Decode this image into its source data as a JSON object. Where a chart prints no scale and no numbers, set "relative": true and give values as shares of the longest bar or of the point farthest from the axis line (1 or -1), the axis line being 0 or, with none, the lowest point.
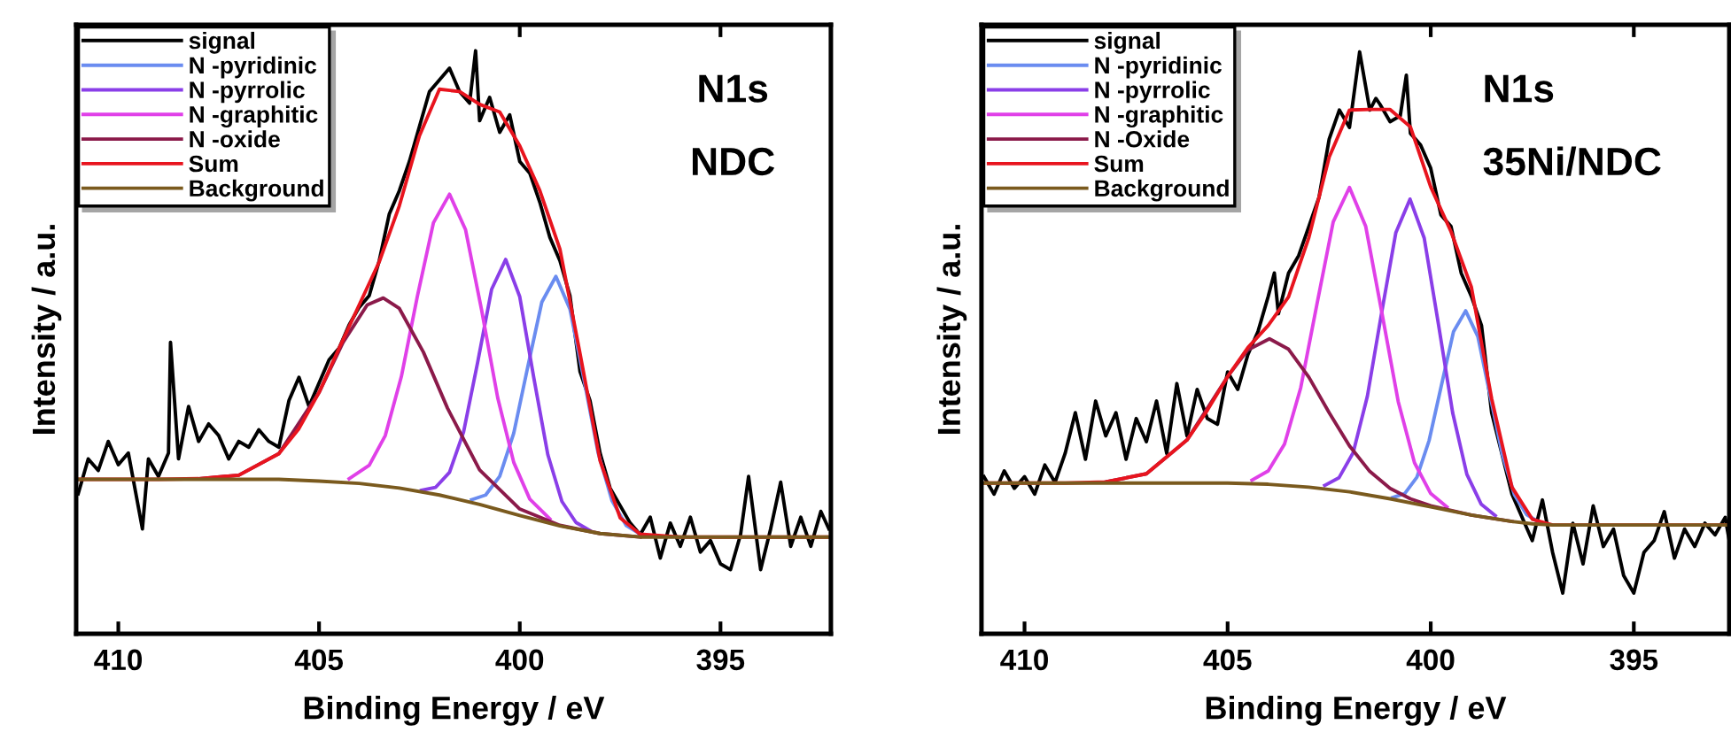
{
  "chart_data": [
    {
      "type": "line",
      "relative": true,
      "xlabel": "Binding Energy / eV",
      "ylabel": "Intensity / a.u.",
      "xlim": [
        411.05,
        392.25
      ],
      "xticks": [
        410,
        405,
        400,
        395
      ],
      "legend": "top left",
      "grid": false,
      "annotations": [
        "N1s",
        "NDC"
      ],
      "series": [
        {
          "name": "signal",
          "color": "#000000",
          "x": [
            411.0,
            410.75,
            410.5,
            410.25,
            410.0,
            409.75,
            409.4,
            409.25,
            409.0,
            408.75,
            408.7,
            408.5,
            408.25,
            408.0,
            407.75,
            407.5,
            407.25,
            407.0,
            406.75,
            406.5,
            406.25,
            406.0,
            405.75,
            405.5,
            405.25,
            405.0,
            404.75,
            404.5,
            404.25,
            404.0,
            403.75,
            403.5,
            403.25,
            403.0,
            402.75,
            402.5,
            402.25,
            402.0,
            401.75,
            401.5,
            401.25,
            401.1,
            401.0,
            400.75,
            400.5,
            400.25,
            400.0,
            399.75,
            399.5,
            399.25,
            399.0,
            398.75,
            398.5,
            398.25,
            398.0,
            397.75,
            397.5,
            397.25,
            397.0,
            396.75,
            396.5,
            396.25,
            396.0,
            395.75,
            395.5,
            395.25,
            395.0,
            394.75,
            394.5,
            394.3,
            394.0,
            393.75,
            393.5,
            393.25,
            393.0,
            392.75,
            392.5,
            392.3
          ],
          "values": [
            0.24,
            0.3,
            0.28,
            0.33,
            0.29,
            0.31,
            0.18,
            0.3,
            0.27,
            0.31,
            0.5,
            0.3,
            0.39,
            0.33,
            0.36,
            0.34,
            0.3,
            0.33,
            0.32,
            0.35,
            0.33,
            0.32,
            0.4,
            0.44,
            0.39,
            0.43,
            0.47,
            0.49,
            0.53,
            0.56,
            0.58,
            0.64,
            0.72,
            0.76,
            0.81,
            0.87,
            0.93,
            0.95,
            0.97,
            0.93,
            0.91,
            1.0,
            0.88,
            0.92,
            0.86,
            0.89,
            0.81,
            0.79,
            0.74,
            0.68,
            0.64,
            0.58,
            0.45,
            0.4,
            0.31,
            0.25,
            0.22,
            0.19,
            0.17,
            0.2,
            0.13,
            0.19,
            0.15,
            0.2,
            0.14,
            0.16,
            0.12,
            0.11,
            0.17,
            0.27,
            0.11,
            0.18,
            0.26,
            0.15,
            0.2,
            0.15,
            0.21,
            0.18
          ]
        },
        {
          "name": "N -pyridinic",
          "color": "#6a8cf0",
          "x": [
            401.2,
            400.85,
            400.5,
            400.15,
            399.8,
            399.45,
            399.1,
            398.75,
            398.4,
            398.05,
            397.7,
            397.35,
            397.0
          ],
          "values": [
            0.23,
            0.238,
            0.27,
            0.344,
            0.458,
            0.569,
            0.613,
            0.557,
            0.436,
            0.311,
            0.228,
            0.186,
            0.171
          ]
        },
        {
          "name": "N -pyrrolic",
          "color": "#8a3ee8",
          "x": [
            402.45,
            402.1,
            401.75,
            401.4,
            401.05,
            400.7,
            400.35,
            400.0,
            399.65,
            399.3,
            398.95,
            398.6,
            398.25
          ],
          "values": [
            0.246,
            0.251,
            0.277,
            0.346,
            0.465,
            0.591,
            0.642,
            0.578,
            0.439,
            0.307,
            0.227,
            0.191,
            0.177
          ]
        },
        {
          "name": "N -graphitic",
          "color": "#e040e8",
          "x": [
            404.25,
            403.75,
            403.35,
            402.95,
            402.55,
            402.15,
            401.75,
            401.35,
            400.95,
            400.55,
            400.15,
            399.75,
            399.25
          ],
          "values": [
            0.266,
            0.289,
            0.34,
            0.441,
            0.579,
            0.705,
            0.754,
            0.693,
            0.555,
            0.405,
            0.294,
            0.231,
            0.197
          ]
        },
        {
          "name": "N -oxide",
          "color": "#8b1a4a",
          "x": [
            408,
            407,
            406,
            405,
            404.4,
            403.8,
            403.4,
            403,
            402.4,
            401.8,
            401,
            400,
            399,
            398,
            397
          ],
          "values": [
            0.266,
            0.272,
            0.309,
            0.414,
            0.5,
            0.564,
            0.576,
            0.558,
            0.483,
            0.387,
            0.281,
            0.214,
            0.186,
            0.172,
            0.166
          ]
        },
        {
          "name": "Sum",
          "color": "#e8141e",
          "x": [
            411,
            409,
            408,
            407,
            406,
            405.5,
            405,
            404.5,
            404,
            403.5,
            403,
            402.5,
            402,
            401.5,
            401,
            400.5,
            400,
            399.5,
            399,
            398.5,
            398,
            397.5,
            397,
            396,
            394,
            392.3
          ],
          "values": [
            0.265,
            0.265,
            0.266,
            0.272,
            0.309,
            0.352,
            0.414,
            0.49,
            0.564,
            0.638,
            0.734,
            0.854,
            0.934,
            0.93,
            0.908,
            0.895,
            0.837,
            0.76,
            0.66,
            0.481,
            0.297,
            0.199,
            0.171,
            0.166,
            0.166,
            0.166
          ]
        },
        {
          "name": "Background",
          "color": "#7a5a1e",
          "x": [
            411,
            406,
            405,
            404,
            403,
            402,
            401,
            400,
            399,
            398,
            397,
            396,
            392.3
          ],
          "values": [
            0.265,
            0.265,
            0.262,
            0.258,
            0.25,
            0.238,
            0.222,
            0.203,
            0.185,
            0.172,
            0.166,
            0.166,
            0.166
          ]
        }
      ]
    },
    {
      "type": "line",
      "relative": true,
      "xlabel": "Binding Energy / eV",
      "ylabel": "Intensity / a.u.",
      "xlim": [
        411.06,
        392.65
      ],
      "xticks": [
        410,
        405,
        400,
        395
      ],
      "legend": "top left",
      "grid": false,
      "annotations": [
        "N1s",
        "35Ni/NDC"
      ],
      "series": [
        {
          "name": "signal",
          "color": "#000000",
          "x": [
            411.0,
            410.75,
            410.5,
            410.25,
            410.0,
            409.75,
            409.5,
            409.25,
            409.0,
            408.75,
            408.5,
            408.25,
            408.0,
            407.75,
            407.5,
            407.25,
            407.0,
            406.75,
            406.5,
            406.25,
            406.0,
            405.75,
            405.5,
            405.25,
            405.0,
            404.75,
            404.5,
            404.25,
            404.0,
            403.85,
            403.75,
            403.5,
            403.25,
            403.0,
            402.75,
            402.5,
            402.25,
            402.0,
            401.75,
            401.5,
            401.35,
            401.25,
            401.0,
            400.75,
            400.6,
            400.5,
            400.25,
            400.0,
            399.75,
            399.5,
            399.25,
            399.0,
            398.75,
            398.5,
            398.25,
            398.0,
            397.75,
            397.5,
            397.25,
            397.0,
            396.75,
            396.5,
            396.25,
            396.0,
            395.75,
            395.5,
            395.25,
            395.0,
            394.75,
            394.5,
            394.25,
            394.0,
            393.75,
            393.5,
            393.25,
            393.0,
            392.75,
            392.65
          ],
          "values": [
            0.27,
            0.24,
            0.28,
            0.25,
            0.27,
            0.24,
            0.29,
            0.26,
            0.31,
            0.38,
            0.3,
            0.4,
            0.34,
            0.38,
            0.3,
            0.37,
            0.33,
            0.4,
            0.31,
            0.43,
            0.34,
            0.42,
            0.37,
            0.36,
            0.45,
            0.42,
            0.48,
            0.52,
            0.58,
            0.62,
            0.55,
            0.62,
            0.65,
            0.7,
            0.75,
            0.85,
            0.9,
            0.87,
            1.0,
            0.9,
            0.92,
            0.91,
            0.88,
            0.89,
            0.96,
            0.86,
            0.84,
            0.8,
            0.72,
            0.7,
            0.62,
            0.58,
            0.53,
            0.38,
            0.31,
            0.24,
            0.2,
            0.16,
            0.23,
            0.14,
            0.07,
            0.19,
            0.12,
            0.22,
            0.15,
            0.18,
            0.1,
            0.07,
            0.14,
            0.16,
            0.21,
            0.13,
            0.18,
            0.15,
            0.19,
            0.17,
            0.2,
            0.16
          ]
        },
        {
          "name": "N -pyridinic",
          "color": "#6a8cf0",
          "x": [
            400.94,
            400.64,
            400.34,
            400.04,
            399.74,
            399.44,
            399.14,
            398.84,
            398.54,
            398.24,
            397.94,
            397.64,
            397.34
          ],
          "values": [
            0.234,
            0.241,
            0.269,
            0.332,
            0.426,
            0.519,
            0.555,
            0.511,
            0.41,
            0.309,
            0.239,
            0.205,
            0.192
          ]
        },
        {
          "name": "N -pyrrolic",
          "color": "#8a3ee8",
          "x": [
            402.61,
            402.26,
            401.91,
            401.56,
            401.21,
            400.86,
            400.51,
            400.16,
            399.81,
            399.46,
            399.11,
            398.76,
            398.41
          ],
          "values": [
            0.255,
            0.268,
            0.311,
            0.408,
            0.551,
            0.689,
            0.747,
            0.68,
            0.532,
            0.38,
            0.274,
            0.223,
            0.203
          ]
        },
        {
          "name": "N -graphitic",
          "color": "#e040e8",
          "x": [
            404.4,
            404.0,
            403.6,
            403.2,
            402.8,
            402.4,
            402.0,
            401.6,
            401.2,
            400.8,
            400.4,
            400.0,
            399.6
          ],
          "values": [
            0.264,
            0.28,
            0.326,
            0.423,
            0.567,
            0.708,
            0.767,
            0.7,
            0.551,
            0.399,
            0.294,
            0.241,
            0.218
          ]
        },
        {
          "name": "N -Oxide",
          "color": "#8b1a4a",
          "x": [
            408,
            407,
            406,
            405,
            404.5,
            403.97,
            403.5,
            403,
            402.5,
            402,
            401.5,
            401,
            400.5,
            400,
            399,
            398
          ],
          "values": [
            0.261,
            0.275,
            0.333,
            0.442,
            0.488,
            0.507,
            0.489,
            0.441,
            0.38,
            0.323,
            0.279,
            0.25,
            0.232,
            0.22,
            0.204,
            0.193
          ]
        },
        {
          "name": "Sum",
          "color": "#e8141e",
          "x": [
            411,
            409,
            408,
            407,
            406,
            405.5,
            405,
            404.5,
            404,
            403.5,
            403,
            402.5,
            402,
            401.5,
            401,
            400.5,
            400,
            399.5,
            399,
            398.5,
            398,
            397.5,
            397,
            395,
            392.65
          ],
          "values": [
            0.259,
            0.259,
            0.261,
            0.275,
            0.333,
            0.384,
            0.442,
            0.492,
            0.53,
            0.579,
            0.681,
            0.819,
            0.9,
            0.901,
            0.901,
            0.871,
            0.768,
            0.691,
            0.596,
            0.404,
            0.252,
            0.197,
            0.187,
            0.187,
            0.187
          ]
        },
        {
          "name": "Background",
          "color": "#7a5a1e",
          "x": [
            411,
            405,
            404,
            403,
            402,
            401,
            400,
            399,
            398,
            397.5,
            397,
            392.65
          ],
          "values": [
            0.259,
            0.259,
            0.257,
            0.252,
            0.244,
            0.232,
            0.218,
            0.204,
            0.193,
            0.189,
            0.187,
            0.187
          ]
        }
      ]
    }
  ]
}
